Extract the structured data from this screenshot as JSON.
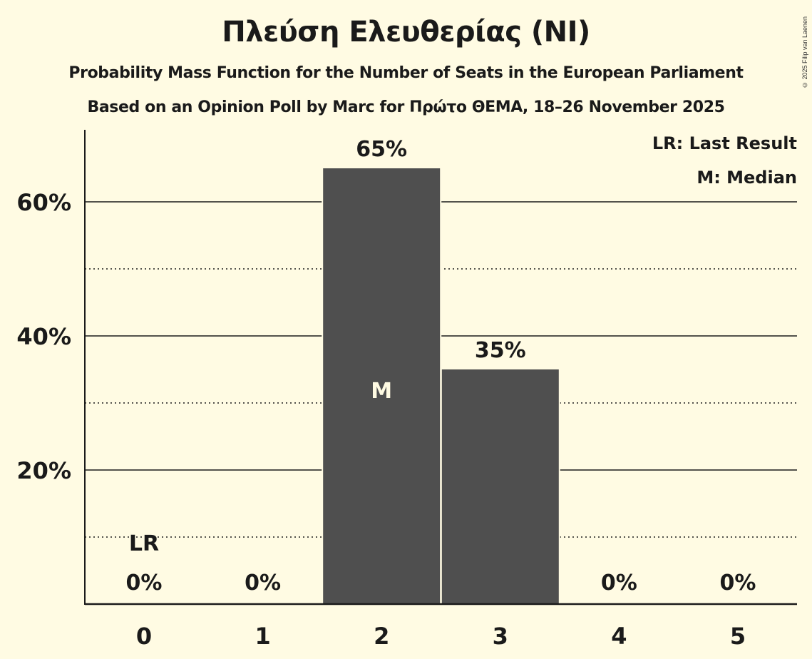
{
  "header": {
    "title": "Πλεύση Ελευθερίας (NI)",
    "subtitle": "Probability Mass Function for the Number of Seats in the European Parliament",
    "source": "Based on an Opinion Poll by Marc for Πρώτο ΘΕΜΑ, 18–26 November 2025"
  },
  "copyright": "© 2025 Filip van Laenen",
  "legend": {
    "lr": "LR: Last Result",
    "m": "M: Median"
  },
  "colors": {
    "background": "#fffbe3",
    "bar": "#4f4f4f",
    "text": "#1a1a1a",
    "median_label": "#fffbe3"
  },
  "chart_data": {
    "type": "bar",
    "title": "Πλεύση Ελευθερίας (NI)",
    "subtitle": "Probability Mass Function for the Number of Seats in the European Parliament",
    "xlabel": "",
    "ylabel": "",
    "categories": [
      "0",
      "1",
      "2",
      "3",
      "4",
      "5"
    ],
    "values": [
      0,
      0,
      65,
      35,
      0,
      0
    ],
    "value_labels": [
      "0%",
      "0%",
      "65%",
      "35%",
      "0%",
      "0%"
    ],
    "ylim": [
      0,
      70
    ],
    "yticks": [
      20,
      40,
      60
    ],
    "ytick_labels": [
      "20%",
      "40%",
      "60%"
    ],
    "grid": {
      "major": [
        20,
        40,
        60
      ],
      "minor_dotted": [
        10,
        30,
        50
      ]
    },
    "annotations": [
      {
        "category": "0",
        "label": "LR",
        "meaning": "Last Result"
      },
      {
        "category": "2",
        "label": "M",
        "meaning": "Median"
      }
    ],
    "legend_position": "top-right"
  }
}
